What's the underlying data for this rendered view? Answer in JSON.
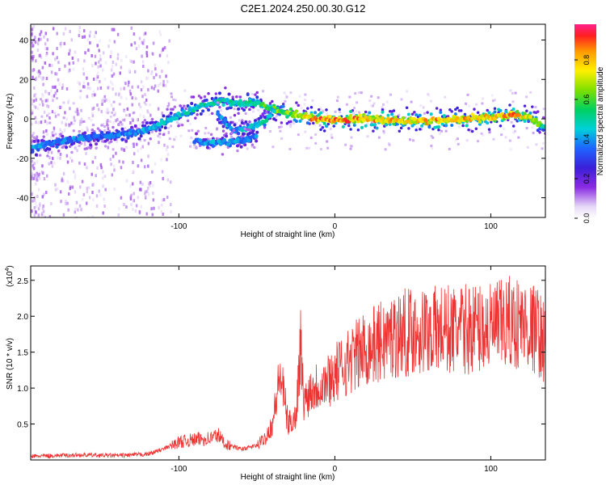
{
  "title": "C2E1.2024.250.00.30.G12",
  "colorbar": {
    "label": "Normalized spectral amplitude",
    "ticks": [
      "0.0",
      "0.2",
      "0.4",
      "0.6",
      "0.8"
    ],
    "tick_values": [
      0.0,
      0.2,
      0.4,
      0.6,
      0.8
    ],
    "range": [
      0.0,
      0.98
    ]
  },
  "chart_data": [
    {
      "type": "heatmap",
      "title": "C2E1.2024.250.00.30.G12",
      "xlabel": "Height of straight line (km)",
      "ylabel": "Frequency (Hz)",
      "xlim": [
        -195,
        135
      ],
      "ylim": [
        -50,
        48
      ],
      "xticks": [
        -100,
        0,
        100
      ],
      "xtick_labels": [
        "-100",
        "0",
        "100"
      ],
      "yticks": [
        -40,
        -20,
        0,
        20,
        40
      ],
      "ytick_labels": [
        "-40",
        "-20",
        "0",
        "20",
        "40"
      ],
      "colormap": "rainbow-purple-to-red",
      "grid": false,
      "ridges": [
        {
          "name": "main",
          "points": [
            {
              "x": -195,
              "y": -15,
              "amp": 0.4
            },
            {
              "x": -180,
              "y": -12,
              "amp": 0.4
            },
            {
              "x": -165,
              "y": -10,
              "amp": 0.38
            },
            {
              "x": -150,
              "y": -9,
              "amp": 0.35
            },
            {
              "x": -135,
              "y": -8,
              "amp": 0.38
            },
            {
              "x": -120,
              "y": -5,
              "amp": 0.42
            },
            {
              "x": -110,
              "y": -2,
              "amp": 0.45
            },
            {
              "x": -100,
              "y": 2,
              "amp": 0.45
            },
            {
              "x": -90,
              "y": 5,
              "amp": 0.48
            },
            {
              "x": -80,
              "y": 8,
              "amp": 0.5
            },
            {
              "x": -70,
              "y": 9,
              "amp": 0.48
            },
            {
              "x": -60,
              "y": 8,
              "amp": 0.5
            },
            {
              "x": -50,
              "y": 8,
              "amp": 0.55
            },
            {
              "x": -40,
              "y": 5,
              "amp": 0.6
            },
            {
              "x": -30,
              "y": 3,
              "amp": 0.65
            },
            {
              "x": -20,
              "y": 1,
              "amp": 0.75
            },
            {
              "x": -10,
              "y": 0,
              "amp": 0.85
            },
            {
              "x": 0,
              "y": -1,
              "amp": 0.85
            },
            {
              "x": 20,
              "y": 0,
              "amp": 0.8
            },
            {
              "x": 40,
              "y": -1,
              "amp": 0.78
            },
            {
              "x": 60,
              "y": -1,
              "amp": 0.8
            },
            {
              "x": 80,
              "y": 0,
              "amp": 0.82
            },
            {
              "x": 100,
              "y": 1,
              "amp": 0.8
            },
            {
              "x": 115,
              "y": 2,
              "amp": 0.82
            },
            {
              "x": 125,
              "y": 1,
              "amp": 0.75
            },
            {
              "x": 135,
              "y": -5,
              "amp": 0.5
            }
          ]
        },
        {
          "name": "secondary",
          "points": [
            {
              "x": -75,
              "y": 3,
              "amp": 0.4
            },
            {
              "x": -70,
              "y": -2,
              "amp": 0.42
            },
            {
              "x": -65,
              "y": -6,
              "amp": 0.42
            },
            {
              "x": -55,
              "y": -5,
              "amp": 0.45
            },
            {
              "x": -45,
              "y": -1,
              "amp": 0.48
            },
            {
              "x": -38,
              "y": 5,
              "amp": 0.5
            }
          ]
        },
        {
          "name": "lower-branch",
          "points": [
            {
              "x": -90,
              "y": -11,
              "amp": 0.35
            },
            {
              "x": -80,
              "y": -12,
              "amp": 0.4
            },
            {
              "x": -70,
              "y": -12,
              "amp": 0.42
            },
            {
              "x": -60,
              "y": -11,
              "amp": 0.4
            },
            {
              "x": -50,
              "y": -9,
              "amp": 0.38
            }
          ]
        }
      ]
    },
    {
      "type": "line",
      "xlabel": "Height of straight line (km)",
      "ylabel": "SNR (10 * v/v)",
      "yscale_label": "(x10",
      "yscale_exponent": "4",
      "xlim": [
        -195,
        135
      ],
      "ylim": [
        0,
        2.7
      ],
      "xticks": [
        -100,
        0,
        100
      ],
      "xtick_labels": [
        "-100",
        "0",
        "100"
      ],
      "yticks": [
        0.5,
        1.0,
        1.5,
        2.0,
        2.5
      ],
      "ytick_labels": [
        "0.5",
        "1.0",
        "1.5",
        "2.0",
        "2.5"
      ],
      "line_color": "#ee3333",
      "grid": false,
      "series": [
        {
          "x": [
            -195,
            -180,
            -160,
            -140,
            -120,
            -110,
            -100,
            -90,
            -80,
            -75,
            -70,
            -60,
            -50,
            -45,
            -40,
            -35,
            -32,
            -30,
            -25,
            -22,
            -20,
            -15,
            -10,
            -5,
            0,
            10,
            20,
            30,
            40,
            50,
            60,
            70,
            80,
            90,
            100,
            110,
            120,
            125,
            130,
            135
          ],
          "y": [
            0.05,
            0.06,
            0.07,
            0.06,
            0.08,
            0.15,
            0.25,
            0.28,
            0.3,
            0.35,
            0.22,
            0.15,
            0.2,
            0.3,
            0.5,
            1.2,
            0.8,
            0.5,
            0.6,
            1.6,
            0.8,
            1.0,
            1.05,
            1.1,
            1.2,
            1.4,
            1.55,
            1.65,
            1.75,
            1.8,
            1.8,
            1.82,
            1.8,
            1.85,
            1.82,
            1.9,
            1.9,
            1.85,
            1.8,
            1.6
          ]
        }
      ]
    }
  ]
}
